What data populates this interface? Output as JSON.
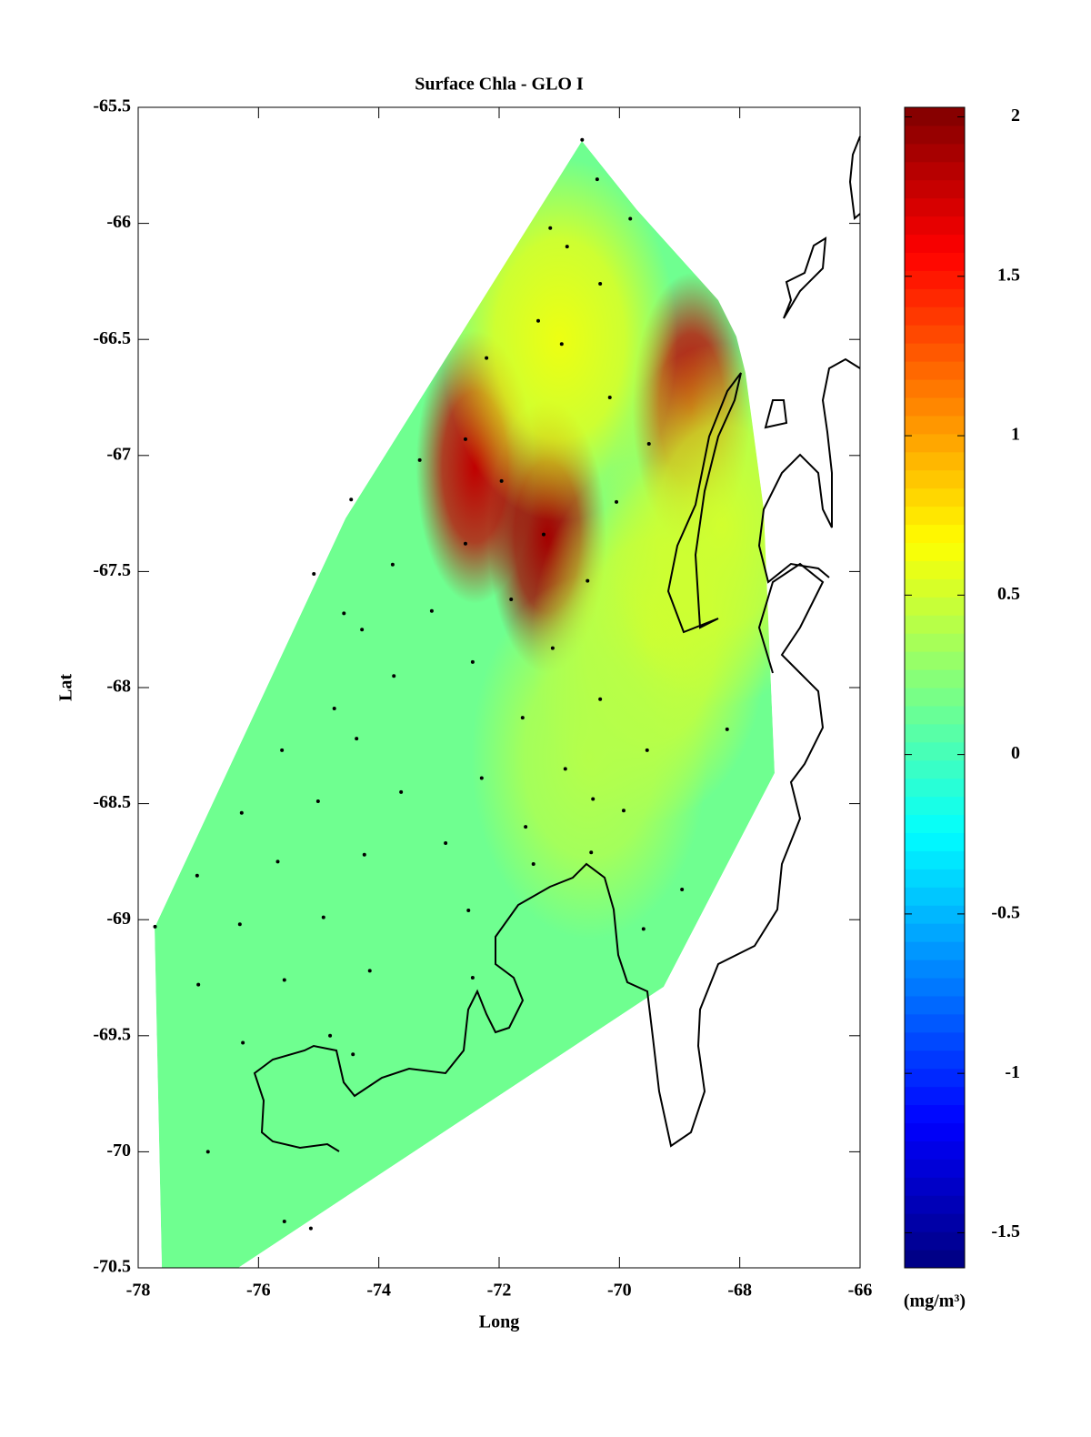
{
  "chart_data": {
    "type": "contour-map",
    "title": "Surface Chla - GLO I",
    "xlabel": "Long",
    "ylabel": "Lat",
    "colorbar_label": "(mg/m³)",
    "colormap": "jet",
    "xlim": [
      -78,
      -66
    ],
    "xticks": [
      -78,
      -76,
      -74,
      -72,
      -70,
      -68,
      -66
    ],
    "ylim": [
      -70.5,
      -65.5
    ],
    "yticks": [
      -65.5,
      -66,
      -66.5,
      -67,
      -67.5,
      -68,
      -68.5,
      -69,
      -69.5,
      -70,
      -70.5
    ],
    "clim": [
      -1.61,
      2.03
    ],
    "cticks": [
      2,
      1.5,
      1,
      0.5,
      0,
      -0.5,
      -1,
      -1.5
    ],
    "field": {
      "x": [
        -73,
        -72.4,
        -71.2,
        -68.8,
        -71.0,
        -69.5,
        -70.5,
        -68.3
      ],
      "y": [
        -68.5,
        -67.05,
        -67.35,
        -66.8,
        -66.5,
        -67.8,
        -68.3,
        -67.3
      ],
      "values": [
        0.15,
        1.8,
        1.9,
        1.8,
        0.6,
        0.5,
        0.4,
        0.5
      ]
    },
    "stations": {
      "x": [
        -70.62,
        -70.37,
        -69.82,
        -71.15,
        -70.87,
        -70.32,
        -71.35,
        -70.96,
        -72.21,
        -70.16,
        -72.56,
        -69.51,
        -71.96,
        -70.05,
        -73.32,
        -74.46,
        -71.26,
        -72.56,
        -70.53,
        -75.08,
        -73.77,
        -71.8,
        -73.12,
        -74.58,
        -74.28,
        -71.11,
        -72.44,
        -73.75,
        -70.32,
        -74.74,
        -71.61,
        -69.54,
        -68.21,
        -75.61,
        -74.37,
        -72.29,
        -70.9,
        -73.63,
        -76.28,
        -75.01,
        -70.44,
        -69.93,
        -71.56,
        -72.89,
        -74.24,
        -75.68,
        -77.02,
        -70.47,
        -71.43,
        -68.96,
        -77.72,
        -76.31,
        -74.92,
        -72.51,
        -69.6,
        -74.15,
        -72.44,
        -75.57,
        -77.0,
        -76.26,
        -74.81,
        -74.43,
        -76.84,
        -75.57,
        -75.13
      ],
      "y": [
        -65.64,
        -65.81,
        -65.98,
        -66.02,
        -66.1,
        -66.26,
        -66.42,
        -66.52,
        -66.58,
        -66.75,
        -66.93,
        -66.95,
        -67.11,
        -67.2,
        -67.02,
        -67.19,
        -67.34,
        -67.38,
        -67.54,
        -67.51,
        -67.47,
        -67.62,
        -67.67,
        -67.68,
        -67.75,
        -67.83,
        -67.89,
        -67.95,
        -68.05,
        -68.09,
        -68.13,
        -68.27,
        -68.18,
        -68.27,
        -68.22,
        -68.39,
        -68.35,
        -68.45,
        -68.54,
        -68.49,
        -68.48,
        -68.53,
        -68.6,
        -68.67,
        -68.72,
        -68.75,
        -68.81,
        -68.71,
        -68.76,
        -68.87,
        -69.03,
        -69.02,
        -68.99,
        -68.96,
        -69.04,
        -69.22,
        -69.25,
        -69.26,
        -69.28,
        -69.53,
        -69.5,
        -69.58,
        -70.0,
        -70.3,
        -70.33
      ]
    }
  }
}
